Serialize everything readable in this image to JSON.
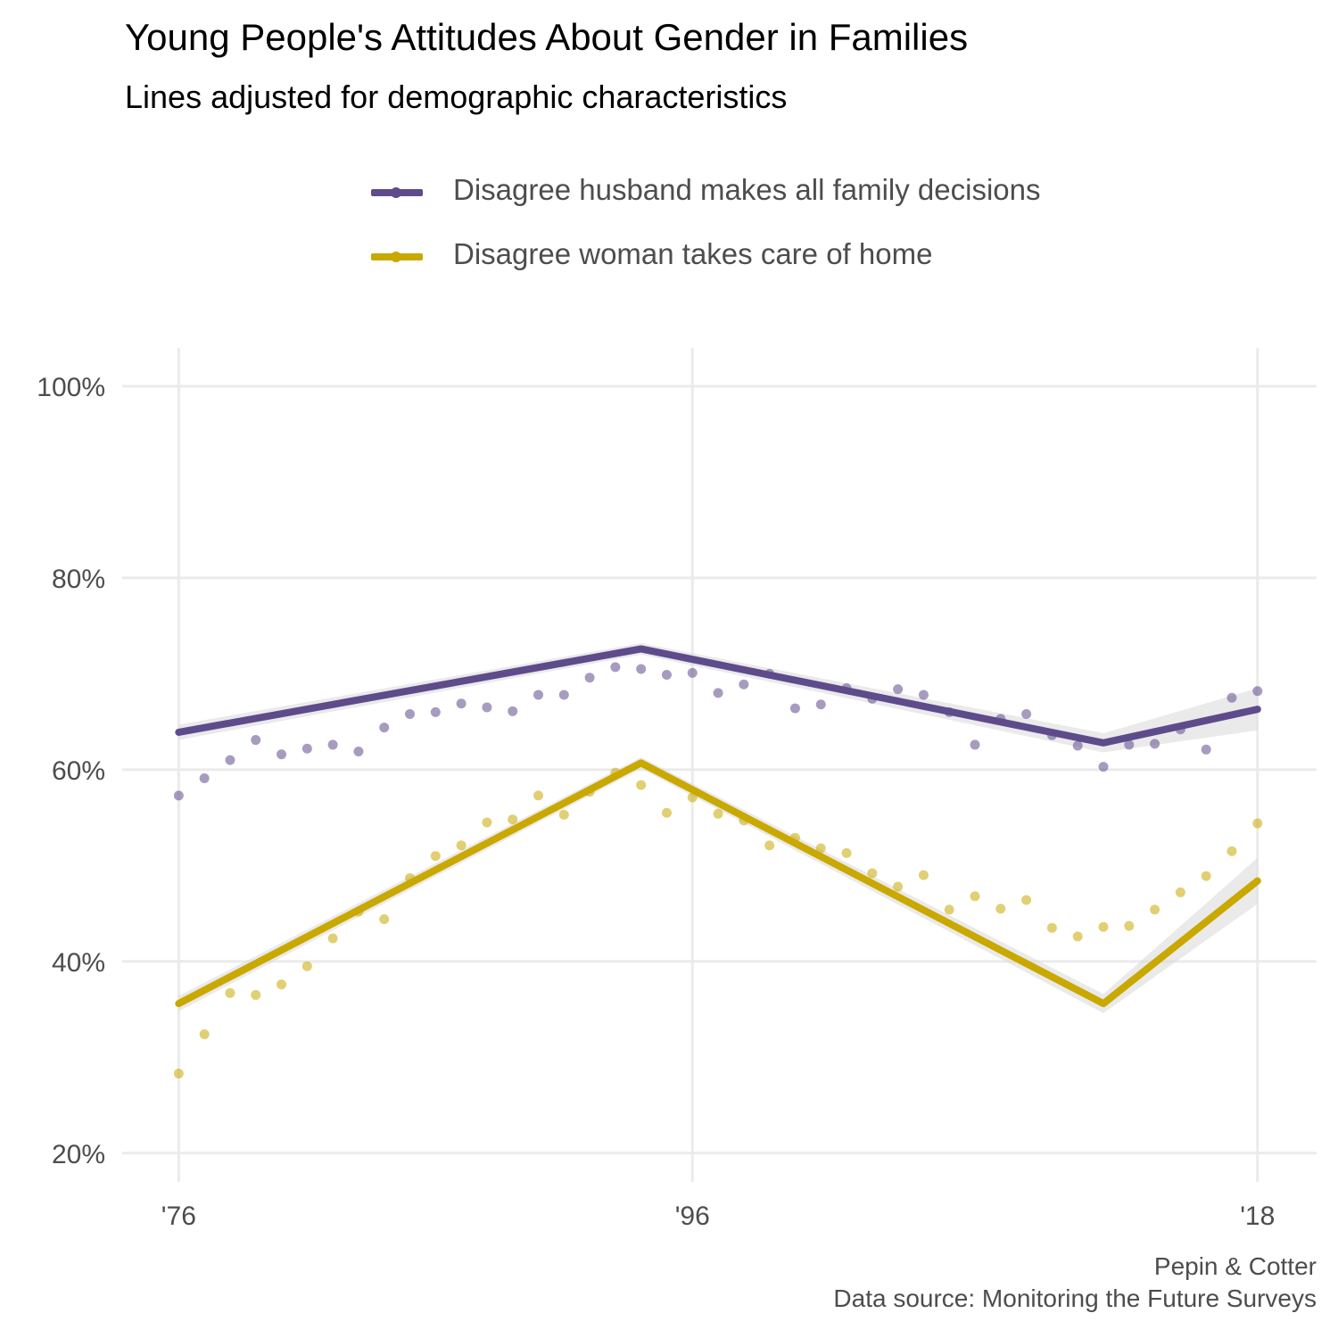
{
  "title": "Young People's Attitudes About Gender in Families",
  "subtitle": "Lines adjusted for demographic characteristics",
  "caption": {
    "line1": "Pepin & Cotter",
    "line2": "Data source: Monitoring the Future Surveys"
  },
  "chart_data": {
    "type": "line",
    "title": "Young People's Attitudes About Gender in Families",
    "subtitle": "Lines adjusted for demographic characteristics",
    "xlabel": "",
    "ylabel": "",
    "xlim": [
      1973.8,
      2020.3
    ],
    "ylim": [
      17,
      104
    ],
    "x_ticks": [
      1976,
      1996,
      2018
    ],
    "x_tick_labels": [
      "'76",
      "'96",
      "'18"
    ],
    "y_ticks": [
      20,
      40,
      60,
      80,
      100
    ],
    "y_tick_labels": [
      "20%",
      "40%",
      "60%",
      "80%",
      "100%"
    ],
    "grid": true,
    "legend_position": "top",
    "series": [
      {
        "name": "Disagree husband makes all family decisions",
        "color": "#5e4b8b",
        "points": [
          [
            1976,
            57.3
          ],
          [
            1977,
            59.1
          ],
          [
            1978,
            61.0
          ],
          [
            1979,
            63.1
          ],
          [
            1980,
            61.6
          ],
          [
            1981,
            62.2
          ],
          [
            1982,
            62.6
          ],
          [
            1983,
            61.9
          ],
          [
            1984,
            64.4
          ],
          [
            1985,
            65.8
          ],
          [
            1986,
            66.0
          ],
          [
            1987,
            66.9
          ],
          [
            1988,
            66.5
          ],
          [
            1989,
            66.1
          ],
          [
            1990,
            67.8
          ],
          [
            1991,
            67.8
          ],
          [
            1992,
            69.6
          ],
          [
            1993,
            70.7
          ],
          [
            1994,
            70.5
          ],
          [
            1995,
            69.9
          ],
          [
            1996,
            70.1
          ],
          [
            1997,
            68.0
          ],
          [
            1998,
            68.9
          ],
          [
            1999,
            70.0
          ],
          [
            2000,
            66.4
          ],
          [
            2001,
            66.8
          ],
          [
            2002,
            68.5
          ],
          [
            2003,
            67.4
          ],
          [
            2004,
            68.4
          ],
          [
            2005,
            67.8
          ],
          [
            2006,
            66.0
          ],
          [
            2007,
            62.6
          ],
          [
            2008,
            65.3
          ],
          [
            2009,
            65.8
          ],
          [
            2010,
            63.6
          ],
          [
            2011,
            62.5
          ],
          [
            2012,
            60.3
          ],
          [
            2013,
            62.6
          ],
          [
            2014,
            62.7
          ],
          [
            2015,
            64.2
          ],
          [
            2016,
            62.1
          ],
          [
            2017,
            67.5
          ],
          [
            2018,
            68.2
          ]
        ],
        "fit": [
          [
            1976,
            63.9
          ],
          [
            1994,
            72.6
          ],
          [
            2012,
            62.8
          ],
          [
            2018,
            66.3
          ]
        ],
        "band_halfwidth": [
          0.8,
          0.6,
          1.0,
          2.2
        ]
      },
      {
        "name": "Disagree woman takes care of home",
        "color": "#c9a800",
        "points": [
          [
            1976,
            28.3
          ],
          [
            1977,
            32.4
          ],
          [
            1978,
            36.7
          ],
          [
            1979,
            36.5
          ],
          [
            1980,
            37.6
          ],
          [
            1981,
            39.5
          ],
          [
            1982,
            42.4
          ],
          [
            1983,
            45.2
          ],
          [
            1984,
            44.4
          ],
          [
            1985,
            48.7
          ],
          [
            1986,
            51.0
          ],
          [
            1987,
            52.1
          ],
          [
            1988,
            54.5
          ],
          [
            1989,
            54.8
          ],
          [
            1990,
            57.3
          ],
          [
            1991,
            55.3
          ],
          [
            1992,
            57.7
          ],
          [
            1993,
            59.7
          ],
          [
            1994,
            58.4
          ],
          [
            1995,
            55.5
          ],
          [
            1996,
            57.1
          ],
          [
            1997,
            55.4
          ],
          [
            1998,
            54.7
          ],
          [
            1999,
            52.1
          ],
          [
            2000,
            52.9
          ],
          [
            2001,
            51.8
          ],
          [
            2002,
            51.3
          ],
          [
            2003,
            49.2
          ],
          [
            2004,
            47.8
          ],
          [
            2005,
            49.0
          ],
          [
            2006,
            45.4
          ],
          [
            2007,
            46.8
          ],
          [
            2008,
            45.5
          ],
          [
            2009,
            46.4
          ],
          [
            2010,
            43.5
          ],
          [
            2011,
            42.6
          ],
          [
            2012,
            43.6
          ],
          [
            2013,
            43.7
          ],
          [
            2014,
            45.4
          ],
          [
            2015,
            47.2
          ],
          [
            2016,
            48.9
          ],
          [
            2017,
            51.5
          ],
          [
            2018,
            54.4
          ]
        ],
        "fit": [
          [
            1976,
            35.6
          ],
          [
            1994,
            60.7
          ],
          [
            2012,
            35.6
          ],
          [
            2018,
            48.4
          ]
        ],
        "band_halfwidth": [
          0.8,
          0.6,
          1.0,
          2.4
        ]
      }
    ]
  }
}
